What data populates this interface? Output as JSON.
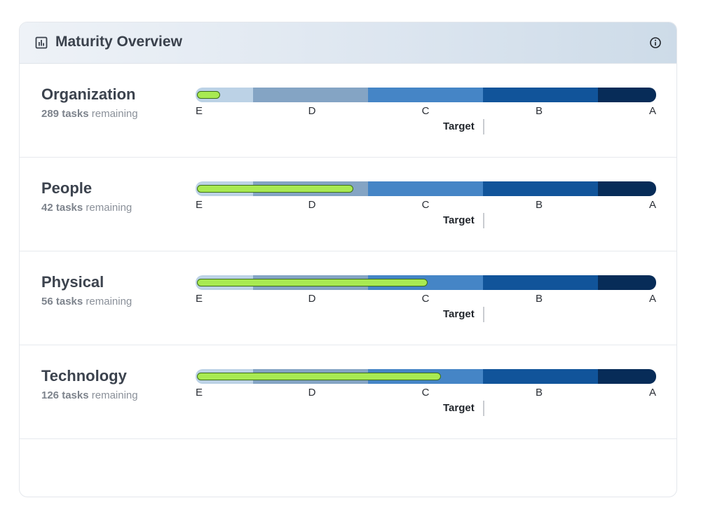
{
  "header": {
    "title": "Maturity Overview",
    "icon": "bar-chart-icon",
    "info_icon": "info-icon"
  },
  "scale": {
    "levels": [
      "E",
      "D",
      "C",
      "B",
      "A"
    ],
    "segment_colors": [
      "#bcd2e6",
      "#84a4c4",
      "#4585c6",
      "#11549a",
      "#072c58"
    ],
    "fill_color": "#a8ea52",
    "target_label": "Target",
    "target_level_fraction": 0.625
  },
  "rows": [
    {
      "name": "Organization",
      "count": "289 tasks",
      "suffix": "remaining",
      "progress_fraction": 0.05
    },
    {
      "name": "People",
      "count": "42 tasks",
      "suffix": "remaining",
      "progress_fraction": 0.34
    },
    {
      "name": "Physical",
      "count": "56 tasks",
      "suffix": "remaining",
      "progress_fraction": 0.5
    },
    {
      "name": "Technology",
      "count": "126 tasks",
      "suffix": "remaining",
      "progress_fraction": 0.53
    }
  ]
}
